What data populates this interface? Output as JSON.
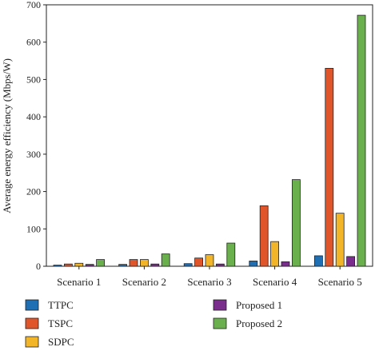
{
  "chart_data": {
    "type": "bar",
    "title": "",
    "xlabel": "",
    "ylabel": "Average energy efficiency (Mbps/W)",
    "ylim": [
      0,
      700
    ],
    "yticks": [
      0,
      100,
      200,
      300,
      400,
      500,
      600,
      700
    ],
    "categories": [
      "Scenario 1",
      "Scenario 2",
      "Scenario 3",
      "Scenario 4",
      "Scenario 5"
    ],
    "series": [
      {
        "name": "TTPC",
        "color": "#1f6fb4",
        "values": [
          3,
          5,
          7,
          14,
          28
        ]
      },
      {
        "name": "TSPC",
        "color": "#e0552a",
        "values": [
          6,
          18,
          22,
          162,
          530
        ]
      },
      {
        "name": "SDPC",
        "color": "#f2b52a",
        "values": [
          8,
          18,
          31,
          66,
          142
        ]
      },
      {
        "name": "Proposed 1",
        "color": "#7b2d8e",
        "values": [
          5,
          6,
          6,
          12,
          26
        ]
      },
      {
        "name": "Proposed 2",
        "color": "#6ab04c",
        "values": [
          18,
          33,
          62,
          232,
          672
        ]
      }
    ],
    "grid": false,
    "legend_position": "bottom"
  }
}
